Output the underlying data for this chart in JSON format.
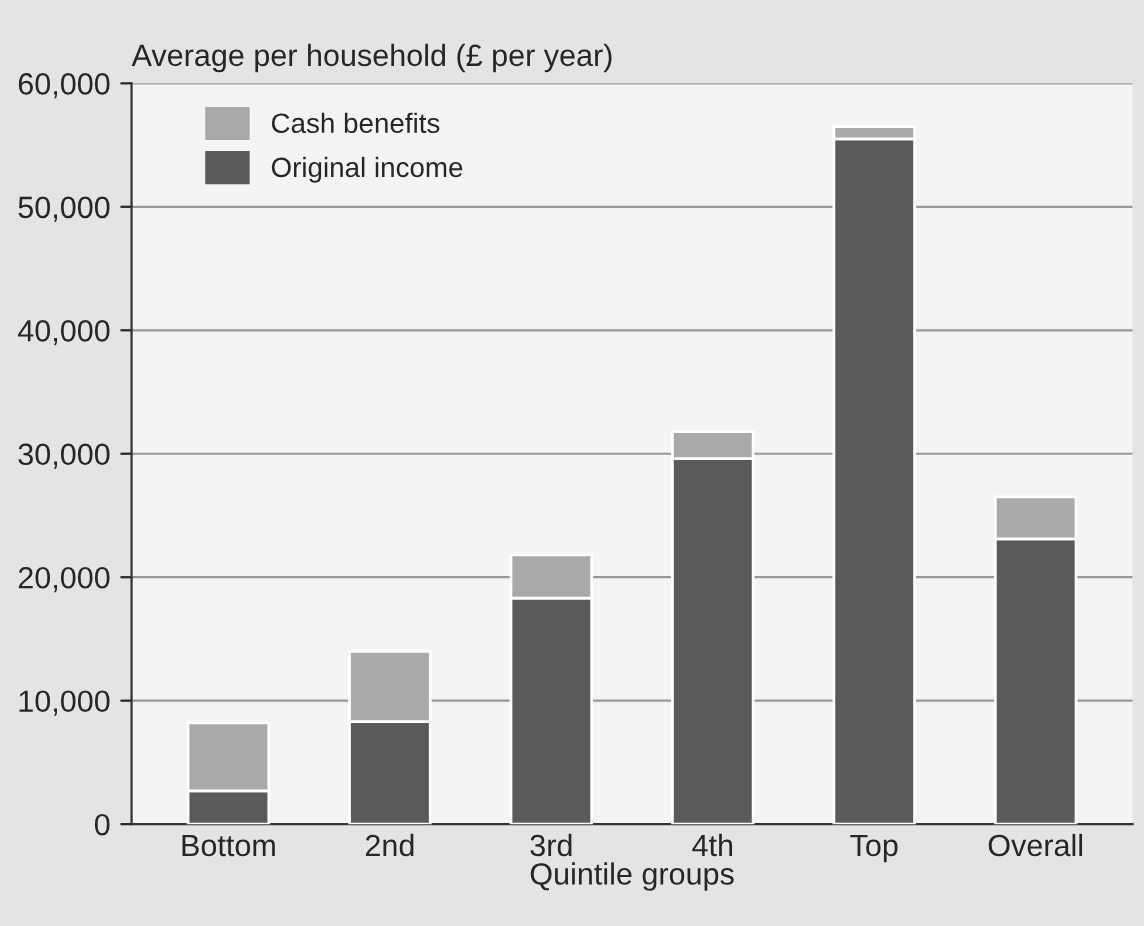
{
  "chart_data": {
    "type": "bar",
    "stacked": true,
    "ylabel": "Average per household (£ per year)",
    "xlabel": "Quintile groups",
    "categories": [
      "Bottom",
      "2nd",
      "3rd",
      "4th",
      "Top",
      "Overall"
    ],
    "series": [
      {
        "name": "Original income",
        "color": "#5a5a5a",
        "values": [
          2700,
          8300,
          18300,
          29600,
          55500,
          23100
        ]
      },
      {
        "name": "Cash benefits",
        "color": "#a9a9a9",
        "values": [
          5500,
          5700,
          3500,
          2200,
          1000,
          3400
        ]
      }
    ],
    "ylim": [
      0,
      60000
    ],
    "yticks": [
      {
        "value": 0,
        "label": "0"
      },
      {
        "value": 10000,
        "label": "10,000"
      },
      {
        "value": 20000,
        "label": "20,000"
      },
      {
        "value": 30000,
        "label": "30,000"
      },
      {
        "value": 40000,
        "label": "40,000"
      },
      {
        "value": 50000,
        "label": "50,000"
      },
      {
        "value": 60000,
        "label": "60,000"
      }
    ],
    "grid": "y",
    "legend": "top left"
  }
}
